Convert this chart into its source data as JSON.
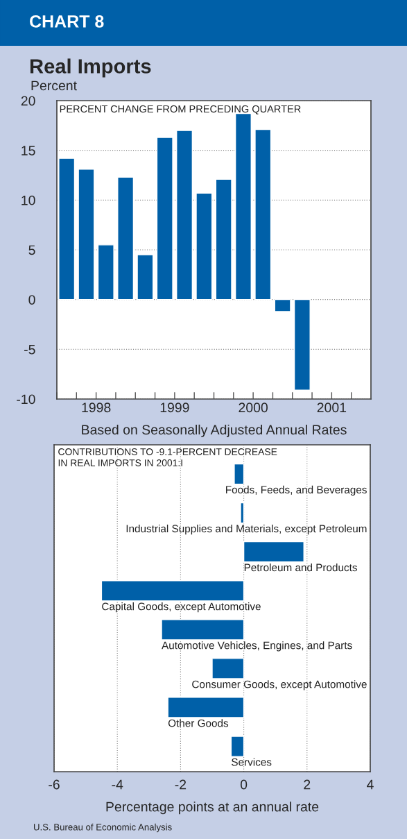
{
  "chart_data": [
    {
      "type": "bar",
      "title": "Real Imports",
      "ylabel": "Percent",
      "xlabel": "Based on Seasonally Adjusted Annual Rates",
      "annotations": [
        "CHART 8",
        "PERCENT CHANGE FROM PRECEDING QUARTER"
      ],
      "x": [
        1998.125,
        1998.375,
        1998.625,
        1998.875,
        1999.125,
        1999.375,
        1999.625,
        1999.875,
        2000.125,
        2000.375,
        2000.625,
        2000.875,
        2001.125
      ],
      "values": [
        14.2,
        13.1,
        5.5,
        12.3,
        4.5,
        16.3,
        17.0,
        10.7,
        12.1,
        18.7,
        17.1,
        -1.2,
        -9.1
      ],
      "color": "#0060a8",
      "xlim": [
        1998,
        2002
      ],
      "xticks": [
        {
          "value": 1998,
          "label": null
        },
        {
          "value": 1998.25,
          "label": null
        },
        {
          "value": 1998.5,
          "label": "1998"
        },
        {
          "value": 1998.75,
          "label": null
        },
        {
          "value": 1999,
          "label": null
        },
        {
          "value": 1999.25,
          "label": null
        },
        {
          "value": 1999.5,
          "label": "1999"
        },
        {
          "value": 1999.75,
          "label": null
        },
        {
          "value": 2000,
          "label": null
        },
        {
          "value": 2000.25,
          "label": null
        },
        {
          "value": 2000.5,
          "label": "2000"
        },
        {
          "value": 2000.75,
          "label": null
        },
        {
          "value": 2001,
          "label": null
        },
        {
          "value": 2001.25,
          "label": null
        },
        {
          "value": 2001.5,
          "label": "2001"
        },
        {
          "value": 2001.75,
          "label": null
        }
      ],
      "ylim": [
        -10,
        20
      ],
      "yticks": [
        -10,
        -5,
        0,
        5,
        10,
        15,
        20
      ],
      "grid": "y"
    },
    {
      "type": "bar",
      "orientation": "horizontal",
      "xlabel": "Percentage points at an annual rate",
      "annotations": [
        "CONTRIBUTIONS TO -9.1-PERCENT DECREASE\nIN REAL IMPORTS IN 2001:I",
        "U.S. Bureau of Economic Analysis"
      ],
      "categories": [
        "Foods, Feeds, and Beverages",
        "Industrial Supplies and Materials, except Petroleum",
        "Petroleum and Products",
        "Capital Goods, except Automotive",
        "Automotive Vehicles, Engines, and Parts",
        "Consumer Goods, except Automotive",
        "Other Goods",
        "Services"
      ],
      "values": [
        -0.3,
        -0.1,
        1.9,
        -4.5,
        -2.6,
        -1.0,
        -2.4,
        -0.4
      ],
      "color": "#0060a8",
      "xlim": [
        -6,
        4
      ],
      "xticks": [
        -6,
        -4,
        -2,
        0,
        2,
        4
      ],
      "grid": "x",
      "tick_labels": "x"
    }
  ]
}
